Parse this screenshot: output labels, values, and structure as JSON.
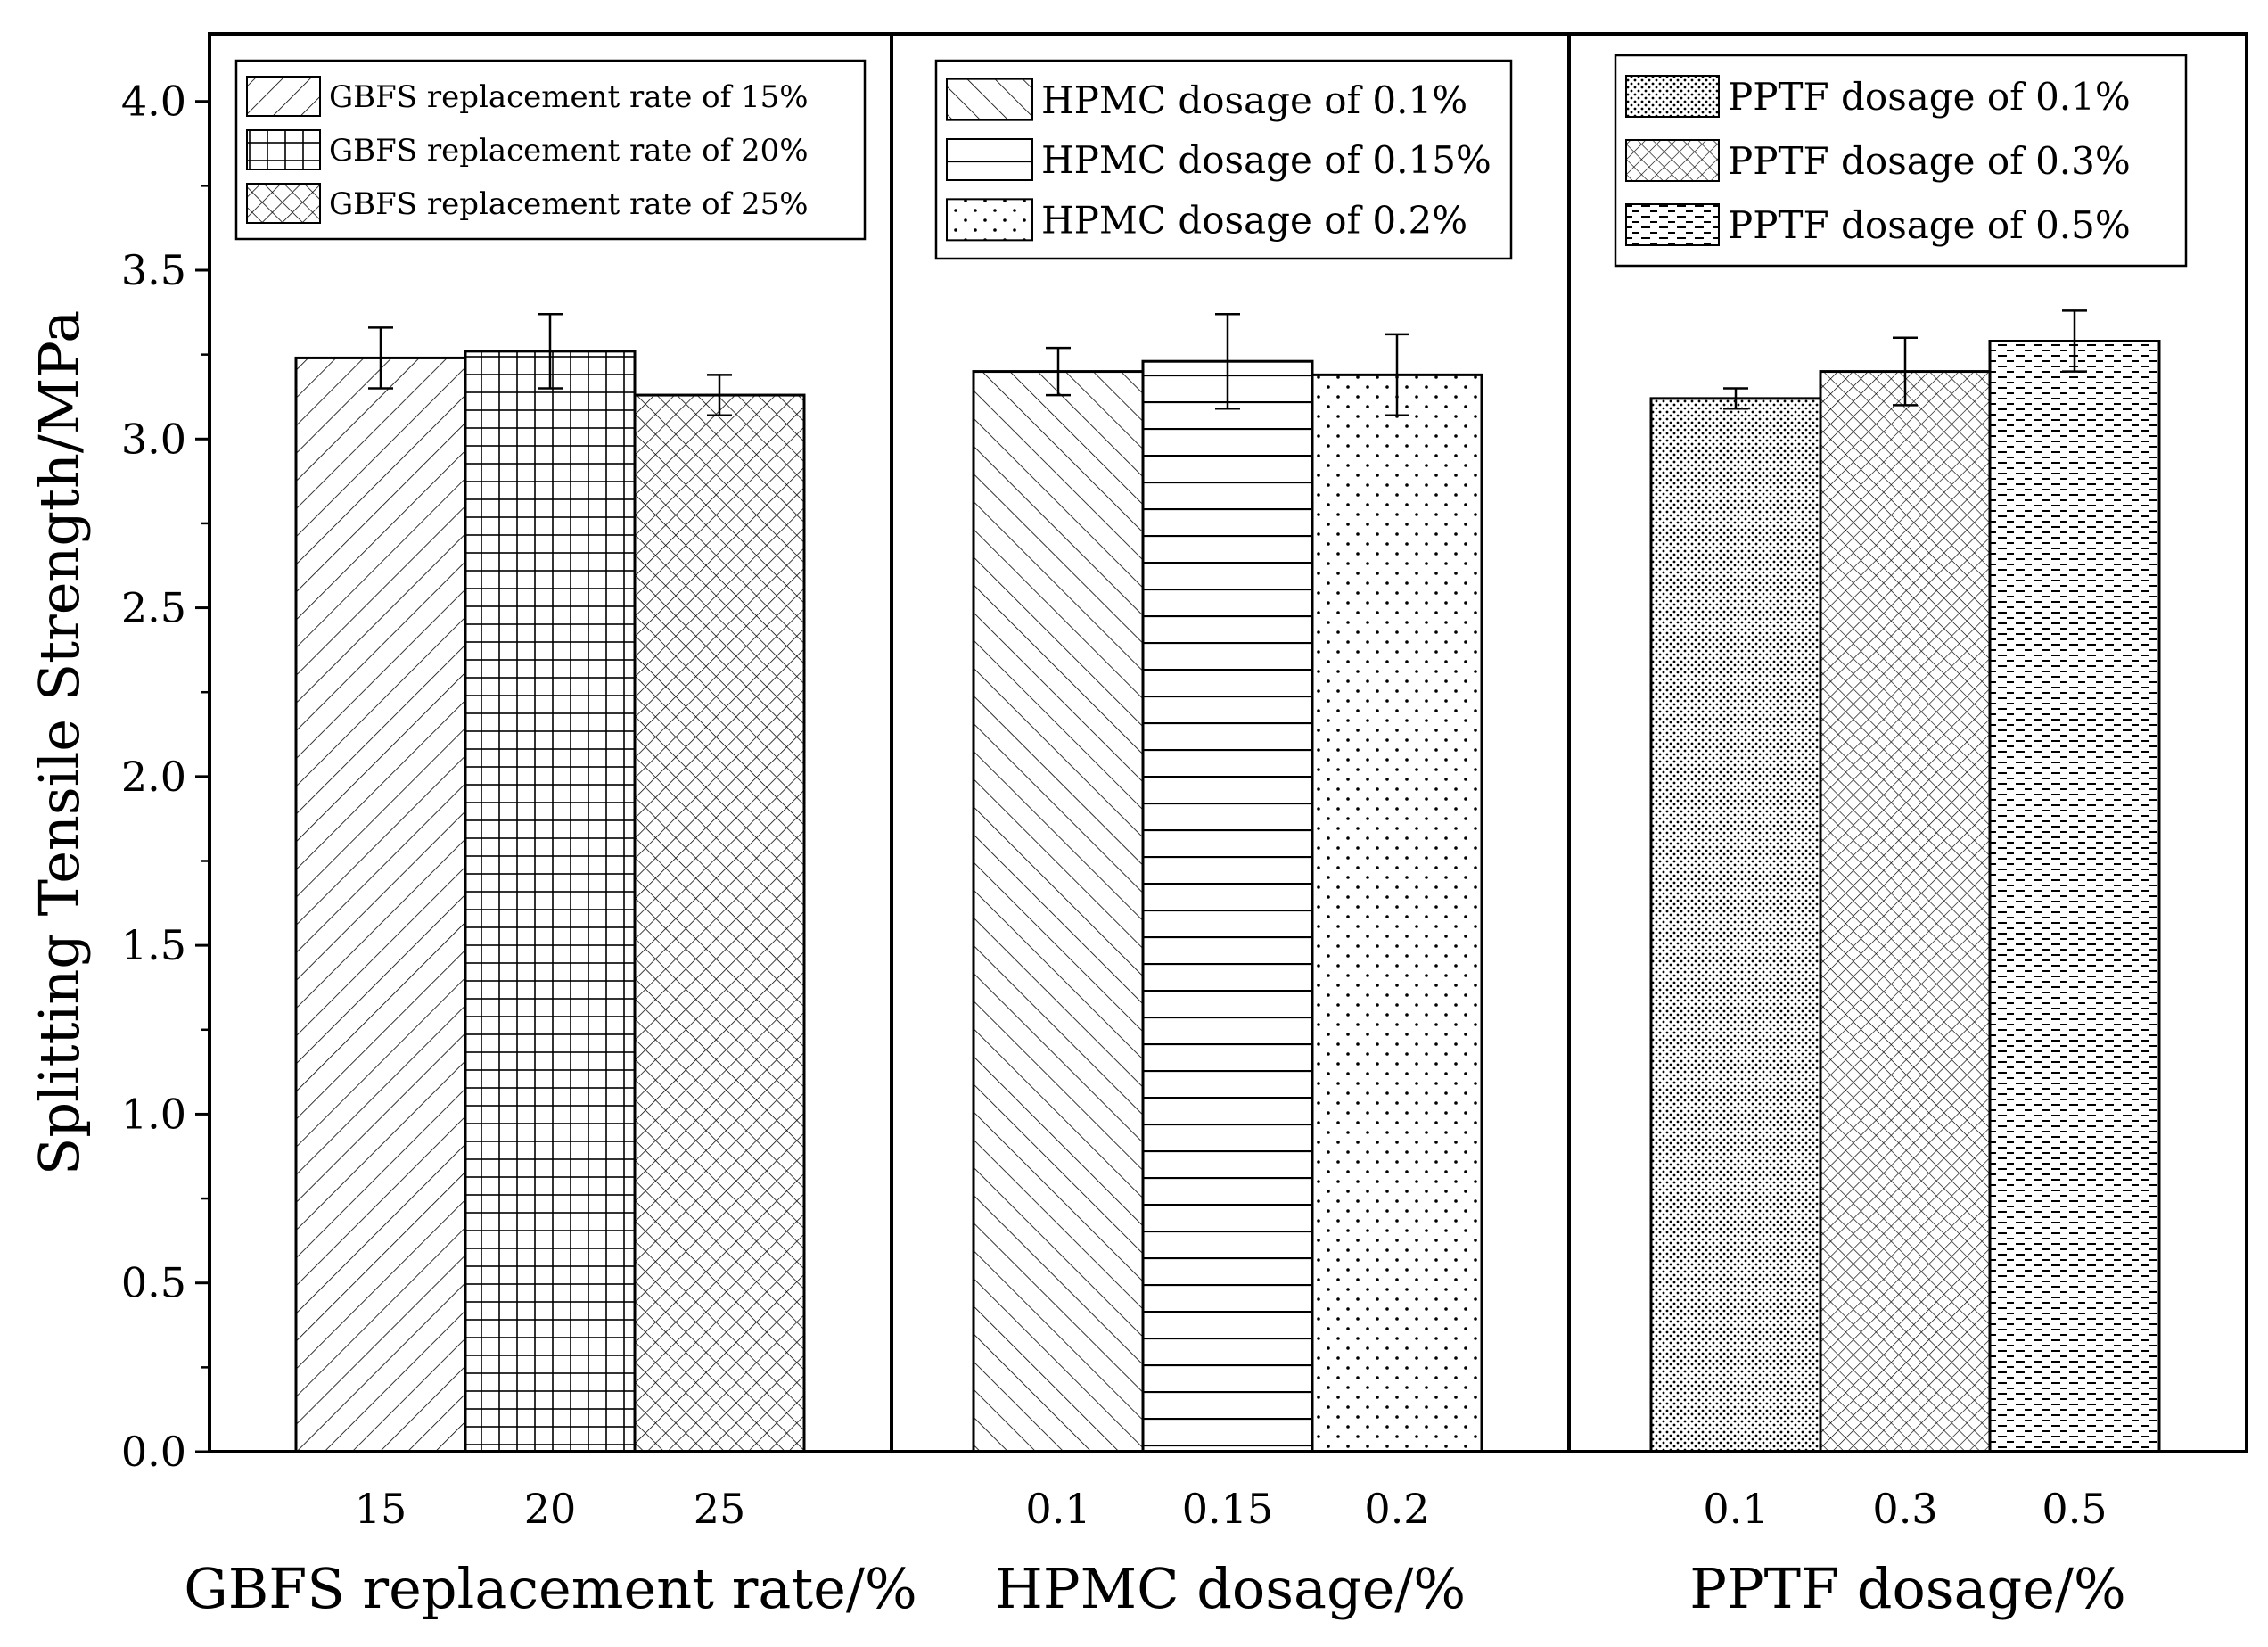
{
  "chart_data": {
    "type": "bar",
    "ylabel": "Splitting Tensile Strength/MPa",
    "ylim": [
      0,
      4.2
    ],
    "yticks": [
      "0.0",
      "0.5",
      "1.0",
      "1.5",
      "2.0",
      "2.5",
      "3.0",
      "3.5",
      "4.0"
    ],
    "grid": false,
    "legend_position": "top of each panel",
    "panels": [
      {
        "xlabel": "GBFS replacement rate/%",
        "categories": [
          "15",
          "20",
          "25"
        ],
        "values": [
          3.24,
          3.26,
          3.13
        ],
        "errors": [
          0.09,
          0.11,
          0.06
        ],
        "series": [
          {
            "name": "GBFS replacement rate of 15%",
            "pattern": "diag-right"
          },
          {
            "name": "GBFS replacement rate of 20%",
            "pattern": "grid"
          },
          {
            "name": "GBFS replacement rate of 25%",
            "pattern": "crosshatch"
          }
        ]
      },
      {
        "xlabel": "HPMC dosage/%",
        "categories": [
          "0.1",
          "0.15",
          "0.2"
        ],
        "values": [
          3.2,
          3.23,
          3.19
        ],
        "errors": [
          0.07,
          0.14,
          0.12
        ],
        "series": [
          {
            "name": "HPMC dosage of 0.1%",
            "pattern": "diag-left"
          },
          {
            "name": "HPMC dosage of 0.15%",
            "pattern": "horizontal"
          },
          {
            "name": "HPMC dosage of 0.2%",
            "pattern": "dots-sparse"
          }
        ]
      },
      {
        "xlabel": "PPTF dosage/%",
        "categories": [
          "0.1",
          "0.3",
          "0.5"
        ],
        "values": [
          3.12,
          3.2,
          3.29
        ],
        "errors": [
          0.03,
          0.1,
          0.09
        ],
        "series": [
          {
            "name": "PPTF dosage of 0.1%",
            "pattern": "dots-dense"
          },
          {
            "name": "PPTF dosage of 0.3%",
            "pattern": "crosshatch-fine"
          },
          {
            "name": "PPTF dosage of 0.5%",
            "pattern": "dashes"
          }
        ]
      }
    ]
  }
}
